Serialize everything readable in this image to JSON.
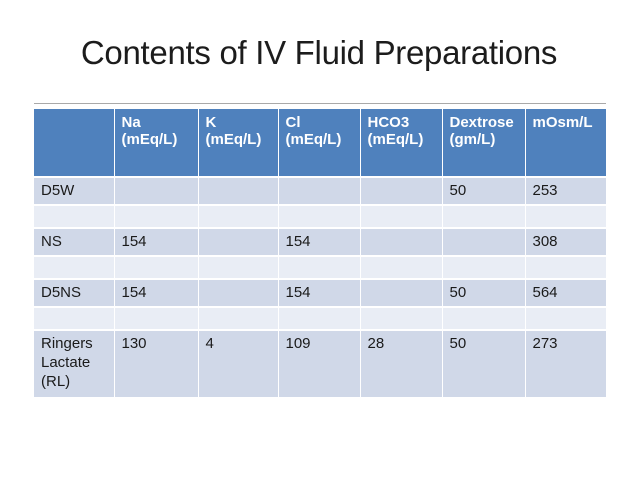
{
  "slide": {
    "title": "Contents of IV Fluid Preparations"
  },
  "table": {
    "headers": [
      {
        "name": "",
        "unit": ""
      },
      {
        "name": "Na",
        "unit": "(mEq/L)"
      },
      {
        "name": "K",
        "unit": "(mEq/L)"
      },
      {
        "name": "Cl",
        "unit": "(mEq/L)"
      },
      {
        "name": "HCO3",
        "unit": "(mEq/L)"
      },
      {
        "name": "Dextrose",
        "unit": "(gm/L)"
      },
      {
        "name": "mOsm/L",
        "unit": ""
      }
    ],
    "rows": [
      {
        "label": "D5W",
        "values": [
          "",
          "",
          "",
          "",
          "50",
          "253"
        ]
      },
      {
        "label": "NS",
        "values": [
          "154",
          "",
          "154",
          "",
          "",
          "308"
        ]
      },
      {
        "label": "D5NS",
        "values": [
          "154",
          "",
          "154",
          "",
          "50",
          "564"
        ]
      },
      {
        "label": "Ringers Lactate (RL)",
        "values": [
          "130",
          "4",
          "109",
          "28",
          "50",
          "273"
        ]
      }
    ]
  },
  "colors": {
    "header_bg": "#4F81BD",
    "band_dark": "#D0D8E8",
    "band_light": "#E9EDF5",
    "header_text": "#FFFFFF",
    "body_text": "#1A1A1A",
    "title_text": "#1C1C1C"
  }
}
